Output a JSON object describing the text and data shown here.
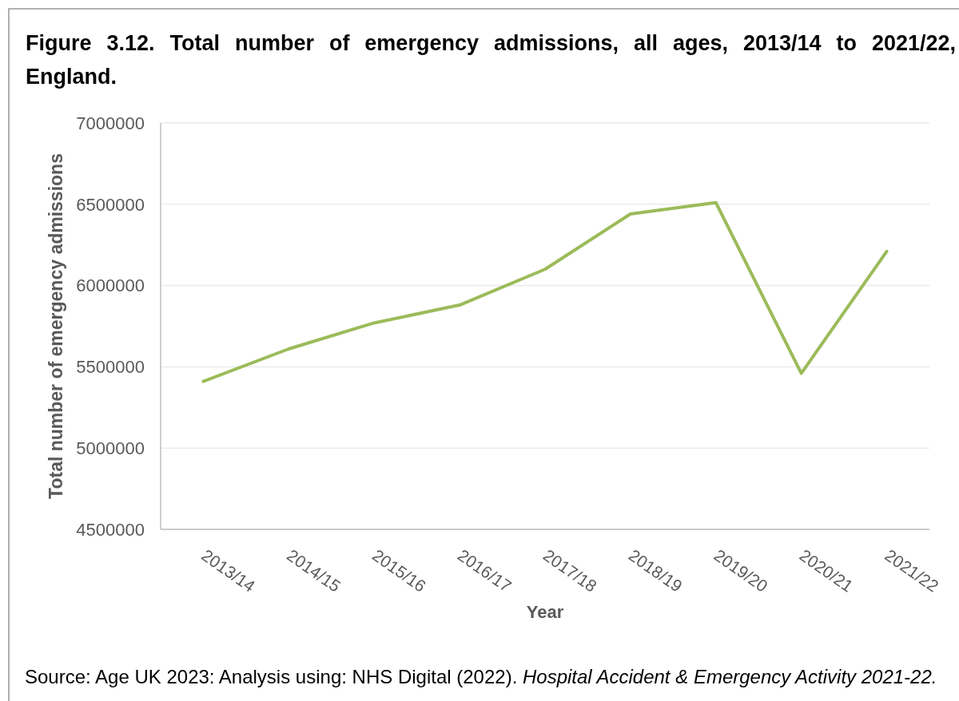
{
  "chart_data": {
    "type": "line",
    "title": "Figure 3.12. Total number of emergency admissions, all ages, 2013/14 to 2021/22, England.",
    "xlabel": "Year",
    "ylabel": "Total number of emergency admissions",
    "categories": [
      "2013/14",
      "2014/15",
      "2015/16",
      "2016/17",
      "2017/18",
      "2018/19",
      "2019/20",
      "2020/21",
      "2021/22"
    ],
    "series": [
      {
        "color": "#9bbb59",
        "values": [
          5410000,
          5610000,
          5770000,
          5880000,
          6100000,
          6440000,
          6510000,
          5460000,
          6210000
        ]
      }
    ],
    "ylim": [
      4500000,
      7000000
    ],
    "yticks": [
      4500000,
      5000000,
      5500000,
      6000000,
      6500000,
      7000000
    ],
    "grid": "y",
    "marker": "none",
    "line_style": "solid",
    "annotations": [
      "Source: Age UK 2023: Analysis using: NHS Digital (2022).",
      "Hospital Accident & Emergency Activity 2021-22."
    ]
  }
}
